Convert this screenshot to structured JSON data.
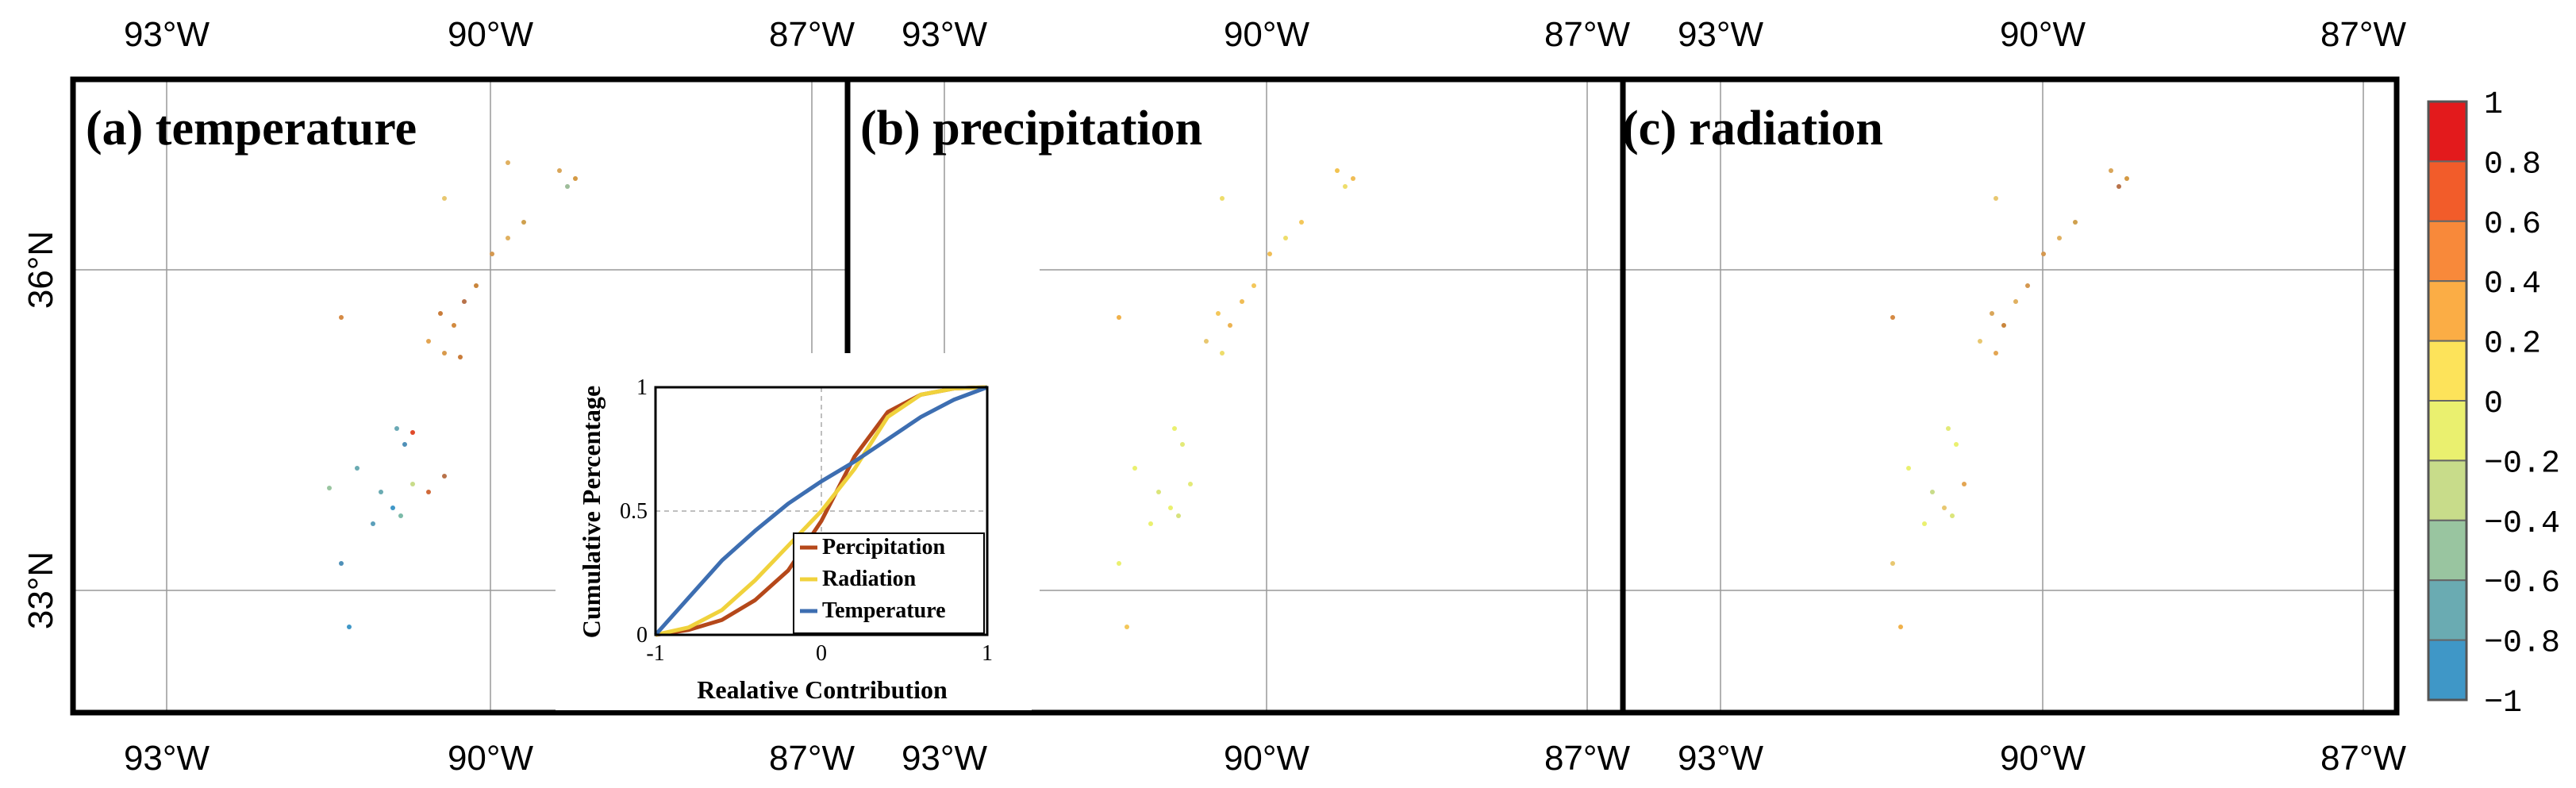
{
  "figure": {
    "panels": [
      {
        "id": "a",
        "title": "(a) temperature",
        "variable": "temperature"
      },
      {
        "id": "b",
        "title": "(b) precipitation",
        "variable": "precipitation"
      },
      {
        "id": "c",
        "title": "(c) radiation",
        "variable": "radiation"
      }
    ],
    "lon_ticks": [
      "93°W",
      "90°W",
      "87°W"
    ],
    "lat_ticks": [
      "36°N",
      "33°N"
    ],
    "colorbar": {
      "labels": [
        "1",
        "0.8",
        "0.6",
        "0.4",
        "0.2",
        "0",
        "−0.2",
        "−0.4",
        "−0.6",
        "−0.8",
        "−1"
      ],
      "colors": [
        "#e31a1c",
        "#f25c2a",
        "#f8893a",
        "#fbad45",
        "#fde35a",
        "#eaf06f",
        "#c8dc8a",
        "#99c5a0",
        "#6aabb2",
        "#3f97c7"
      ]
    }
  },
  "chart_data": {
    "type": "line",
    "title": "",
    "xlabel": "Realative Contribution",
    "ylabel": "Cumulative Percentage",
    "xlim": [
      -1,
      1
    ],
    "ylim": [
      0,
      1
    ],
    "x_ticks": [
      "-1",
      "0",
      "1"
    ],
    "y_ticks": [
      "0",
      "0.5",
      "1"
    ],
    "grid": true,
    "legend_position": "bottom-right",
    "series": [
      {
        "name": "Percipitation",
        "color": "#b5481a",
        "x": [
          -1,
          -0.8,
          -0.6,
          -0.4,
          -0.2,
          0,
          0.2,
          0.4,
          0.6,
          0.8,
          1
        ],
        "y": [
          0,
          0.02,
          0.06,
          0.14,
          0.26,
          0.46,
          0.72,
          0.9,
          0.97,
          0.995,
          1
        ]
      },
      {
        "name": "Radiation",
        "color": "#f0d23c",
        "x": [
          -1,
          -0.8,
          -0.6,
          -0.4,
          -0.2,
          0,
          0.2,
          0.4,
          0.6,
          0.8,
          1
        ],
        "y": [
          0,
          0.03,
          0.1,
          0.22,
          0.36,
          0.5,
          0.67,
          0.88,
          0.97,
          0.995,
          1
        ]
      },
      {
        "name": "Temperature",
        "color": "#3d6eb1",
        "x": [
          -1,
          -0.8,
          -0.6,
          -0.4,
          -0.2,
          0,
          0.2,
          0.4,
          0.6,
          0.8,
          1
        ],
        "y": [
          0,
          0.15,
          0.3,
          0.42,
          0.53,
          0.62,
          0.7,
          0.79,
          0.88,
          0.95,
          1
        ]
      }
    ]
  }
}
